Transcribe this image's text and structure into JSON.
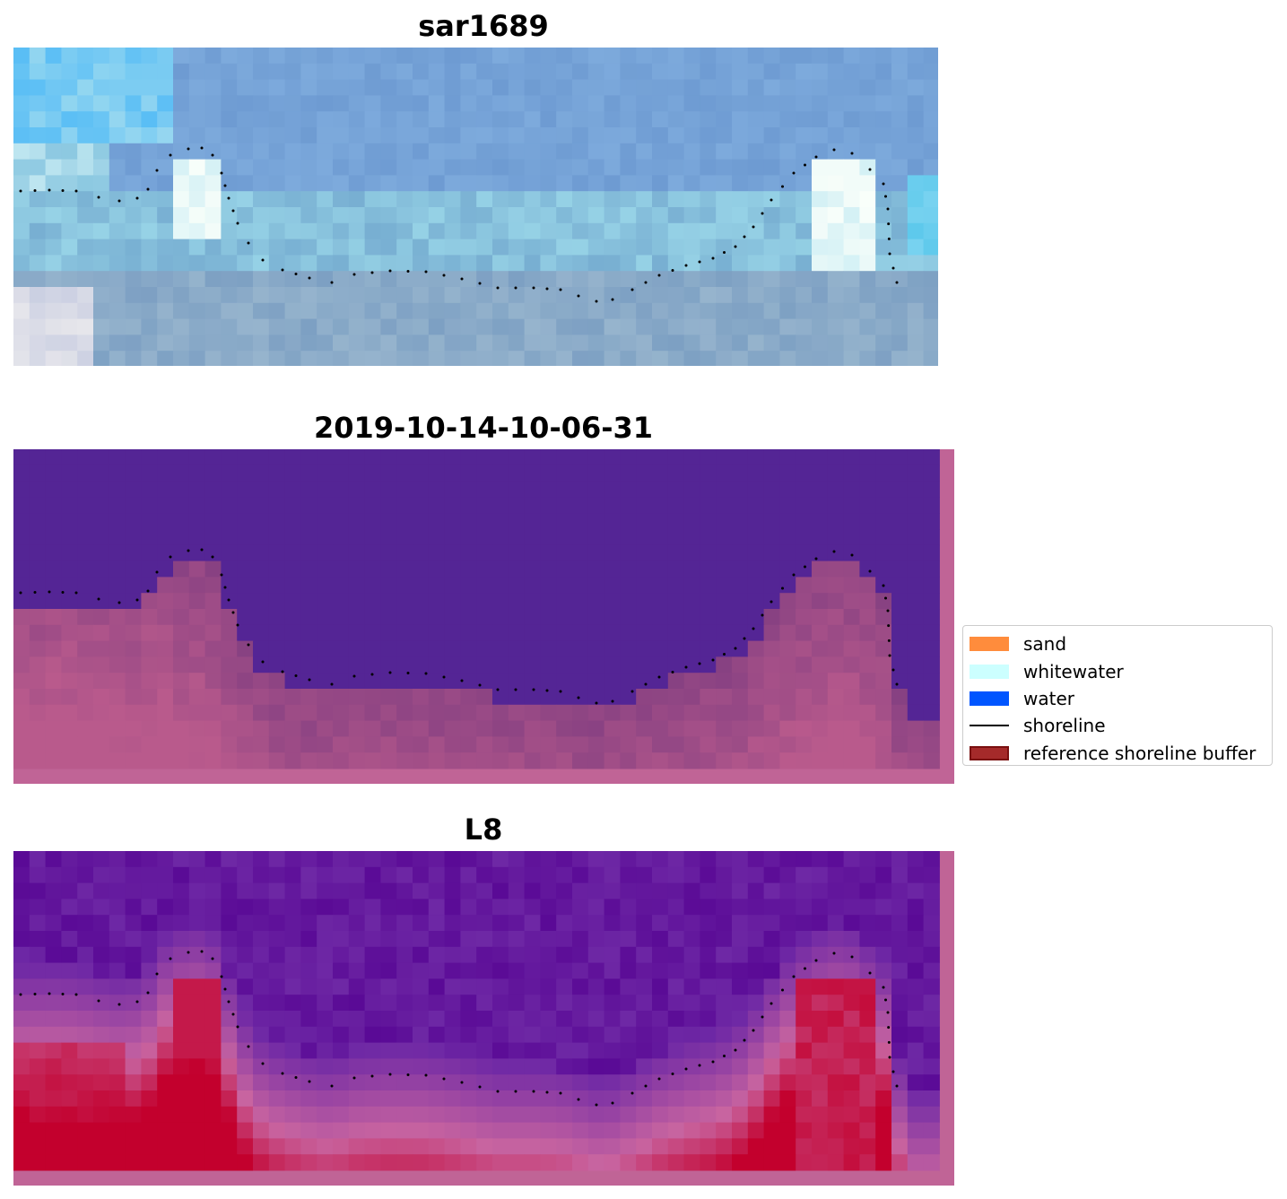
{
  "panels": [
    {
      "title": "sar1689",
      "kind": "rgb"
    },
    {
      "title": "2019-10-14-10-06-31",
      "kind": "classified"
    },
    {
      "title": "L8",
      "kind": "index"
    }
  ],
  "legend": {
    "items": [
      {
        "label": "sand",
        "color": "#ff8c3c",
        "kind": "patch"
      },
      {
        "label": "whitewater",
        "color": "#ccffff",
        "kind": "patch"
      },
      {
        "label": "water",
        "color": "#0055ff",
        "kind": "patch"
      },
      {
        "label": "shoreline",
        "color": "#000000",
        "kind": "line"
      },
      {
        "label": "reference shoreline buffer",
        "color": "#a52a2a",
        "kind": "patch"
      }
    ]
  },
  "colors": {
    "water_class": "#542595",
    "land_class": "#8a4480",
    "buffer_border": "#c06496",
    "index_low": "#5a0a9a",
    "index_high": "#c4002e"
  }
}
